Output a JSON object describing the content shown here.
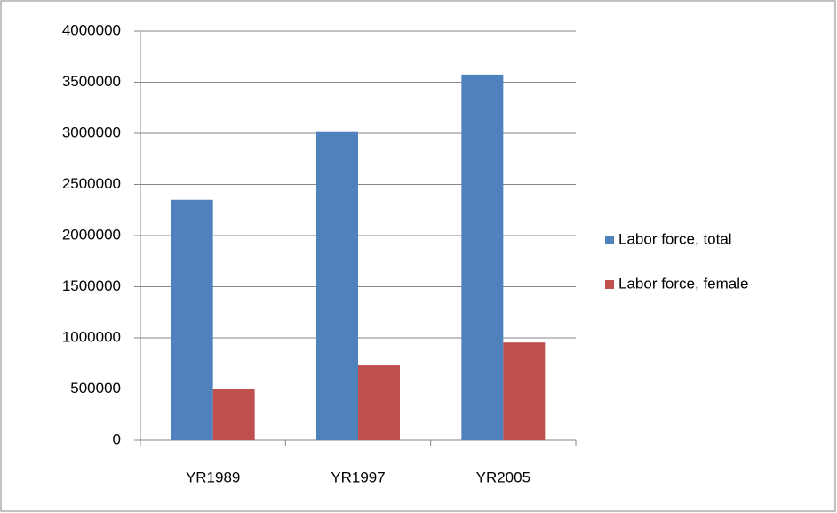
{
  "chart_data": {
    "type": "bar",
    "categories": [
      "YR1989",
      "YR1997",
      "YR2005"
    ],
    "series": [
      {
        "name": "Labor force, total",
        "color": "#4f81bd",
        "values": [
          2350000,
          3020000,
          3575000
        ]
      },
      {
        "name": "Labor force, female",
        "color": "#c0504d",
        "values": [
          500000,
          730000,
          955000
        ]
      }
    ],
    "ylim": [
      0,
      4000000
    ],
    "yticks": [
      0,
      500000,
      1000000,
      1500000,
      2000000,
      2500000,
      3000000,
      3500000,
      4000000
    ],
    "grid": true,
    "legend": "right"
  }
}
